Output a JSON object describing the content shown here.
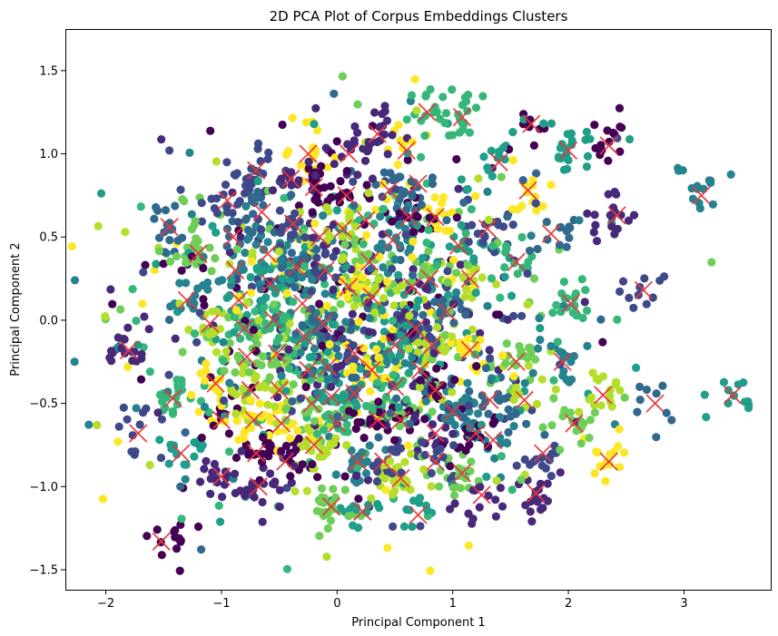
{
  "chart_data": {
    "type": "scatter",
    "title": "2D PCA Plot of Corpus Embeddings Clusters",
    "xlabel": "Principal Component 1",
    "ylabel": "Principal Component 2",
    "xlim": [
      -2.35,
      3.75
    ],
    "ylim": [
      -1.62,
      1.75
    ],
    "xticks": [
      -2,
      -1,
      0,
      1,
      2,
      3
    ],
    "yticks": [
      -1.5,
      -1.0,
      -0.5,
      0.0,
      0.5,
      1.0,
      1.5
    ],
    "grid": false,
    "colormap": "viridis",
    "palette": [
      "#440154",
      "#482878",
      "#3e4989",
      "#31688e",
      "#26828e",
      "#1f9e89",
      "#35b779",
      "#6ece58",
      "#b5de2b",
      "#fde725"
    ],
    "point_count": 2600,
    "distribution": {
      "center": [
        0.15,
        0.0
      ],
      "spread": [
        0.95,
        0.55
      ]
    },
    "centroid_marker": {
      "shape": "x",
      "color": "#e8383d"
    },
    "centroids": [
      [
        -1.52,
        -1.33
      ],
      [
        -1.8,
        -0.18
      ],
      [
        -1.72,
        -0.68
      ],
      [
        -1.45,
        0.56
      ],
      [
        -1.3,
        0.12
      ],
      [
        -1.35,
        -0.8
      ],
      [
        -1.42,
        -0.47
      ],
      [
        -1.2,
        0.4
      ],
      [
        -1.1,
        -0.02
      ],
      [
        -1.05,
        -0.38
      ],
      [
        -1.0,
        -0.6
      ],
      [
        -1.0,
        -0.94
      ],
      [
        -0.95,
        0.72
      ],
      [
        -0.9,
        0.5
      ],
      [
        -0.88,
        0.3
      ],
      [
        -0.85,
        0.12
      ],
      [
        -0.8,
        -0.05
      ],
      [
        -0.78,
        -0.22
      ],
      [
        -0.75,
        -0.42
      ],
      [
        -0.72,
        -0.6
      ],
      [
        -0.7,
        -0.8
      ],
      [
        -0.68,
        -1.0
      ],
      [
        -0.7,
        0.9
      ],
      [
        -0.65,
        0.65
      ],
      [
        -0.6,
        0.4
      ],
      [
        -0.58,
        0.22
      ],
      [
        -0.55,
        0.0
      ],
      [
        -0.52,
        -0.2
      ],
      [
        -0.5,
        -0.42
      ],
      [
        -0.48,
        -0.62
      ],
      [
        -0.45,
        -0.85
      ],
      [
        -0.4,
        0.85
      ],
      [
        -0.38,
        0.58
      ],
      [
        -0.35,
        0.32
      ],
      [
        -0.3,
        0.1
      ],
      [
        -0.28,
        -0.1
      ],
      [
        -0.25,
        -0.3
      ],
      [
        -0.22,
        -0.5
      ],
      [
        -0.2,
        -0.75
      ],
      [
        -0.25,
        1.0
      ],
      [
        -0.2,
        0.8
      ],
      [
        -0.15,
        0.5
      ],
      [
        -0.1,
        0.3
      ],
      [
        -0.12,
        -0.02
      ],
      [
        -0.08,
        -0.28
      ],
      [
        -0.05,
        -0.46
      ],
      [
        0.0,
        -0.62
      ],
      [
        -0.05,
        -1.12
      ],
      [
        0.05,
        0.55
      ],
      [
        0.1,
        0.2
      ],
      [
        0.08,
        0.75
      ],
      [
        0.1,
        1.0
      ],
      [
        0.15,
        -0.2
      ],
      [
        0.15,
        -0.44
      ],
      [
        0.18,
        -0.85
      ],
      [
        0.22,
        -1.15
      ],
      [
        0.25,
        0.6
      ],
      [
        0.28,
        0.35
      ],
      [
        0.3,
        0.14
      ],
      [
        0.3,
        -0.3
      ],
      [
        0.35,
        -0.6
      ],
      [
        0.35,
        1.12
      ],
      [
        0.4,
        -0.85
      ],
      [
        0.45,
        0.78
      ],
      [
        0.48,
        0.48
      ],
      [
        0.5,
        -0.15
      ],
      [
        0.5,
        -0.4
      ],
      [
        0.55,
        -0.6
      ],
      [
        0.55,
        -0.95
      ],
      [
        0.6,
        1.02
      ],
      [
        0.62,
        0.62
      ],
      [
        0.65,
        0.2
      ],
      [
        0.68,
        -0.05
      ],
      [
        0.7,
        0.82
      ],
      [
        0.72,
        -0.3
      ],
      [
        0.7,
        -1.17
      ],
      [
        0.78,
        1.25
      ],
      [
        0.8,
        0.25
      ],
      [
        0.82,
        -0.15
      ],
      [
        0.85,
        0.62
      ],
      [
        0.85,
        -0.42
      ],
      [
        0.85,
        -0.68
      ],
      [
        0.85,
        -0.85
      ],
      [
        0.95,
        0.05
      ],
      [
        1.0,
        -0.55
      ],
      [
        1.05,
        0.45
      ],
      [
        1.08,
        1.22
      ],
      [
        1.08,
        -0.92
      ],
      [
        1.15,
        0.25
      ],
      [
        1.15,
        -0.18
      ],
      [
        1.2,
        -0.68
      ],
      [
        1.25,
        -1.05
      ],
      [
        1.3,
        0.55
      ],
      [
        1.32,
        -0.48
      ],
      [
        1.35,
        -0.72
      ],
      [
        1.4,
        0.95
      ],
      [
        1.55,
        0.35
      ],
      [
        1.55,
        -0.25
      ],
      [
        1.62,
        -0.48
      ],
      [
        1.65,
        0.78
      ],
      [
        1.68,
        1.18
      ],
      [
        1.72,
        -1.04
      ],
      [
        1.78,
        -0.8
      ],
      [
        1.85,
        0.52
      ],
      [
        1.95,
        -0.25
      ],
      [
        2.0,
        1.02
      ],
      [
        2.02,
        0.1
      ],
      [
        2.05,
        -0.62
      ],
      [
        2.3,
        -0.45
      ],
      [
        2.35,
        -0.85
      ],
      [
        2.35,
        1.05
      ],
      [
        2.42,
        0.63
      ],
      [
        2.65,
        0.18
      ],
      [
        2.75,
        -0.5
      ],
      [
        3.15,
        0.75
      ],
      [
        3.42,
        -0.45
      ]
    ]
  }
}
